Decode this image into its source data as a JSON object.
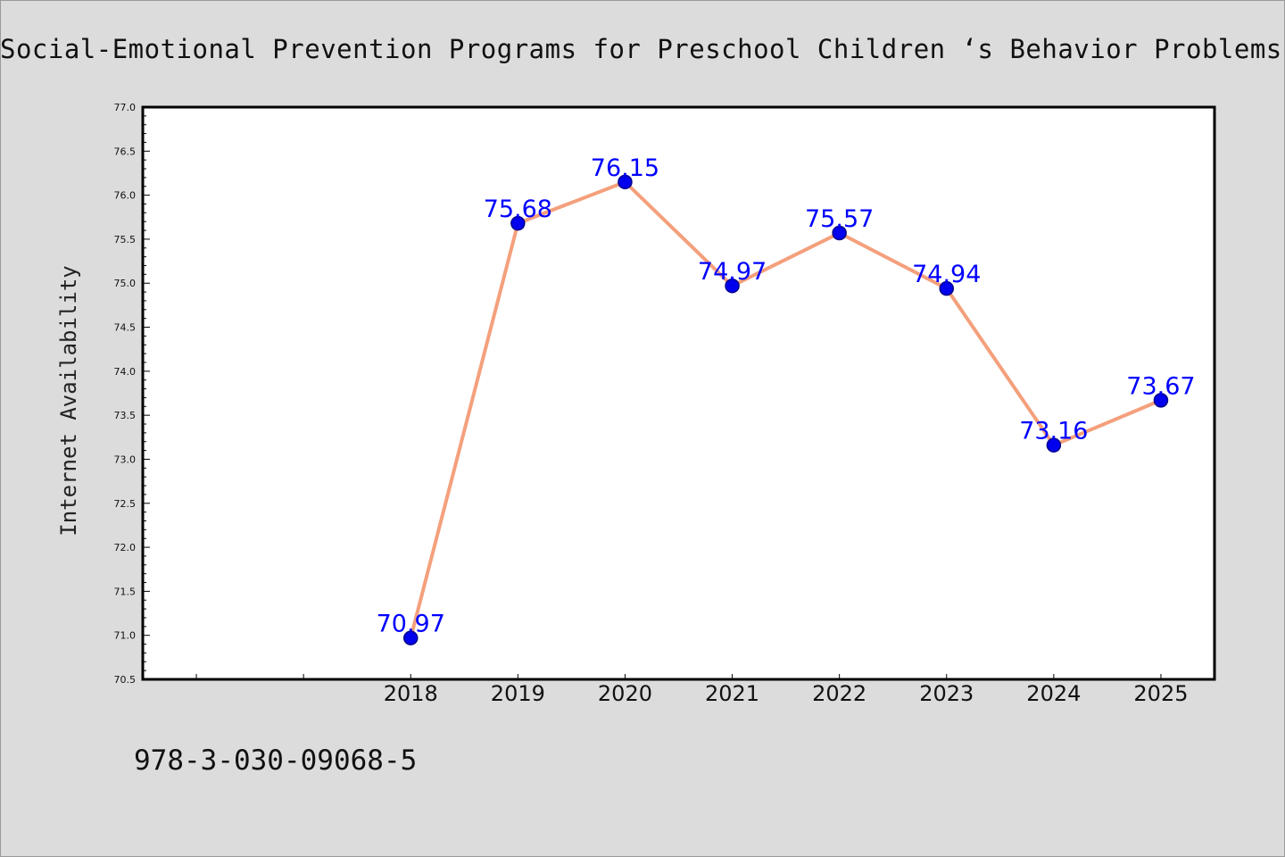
{
  "chart_data": {
    "type": "line",
    "title": "Social-Emotional Prevention Programs for Preschool Children ‘s Behavior Problems",
    "ylabel": "Internet Availability",
    "xlabel": "",
    "x": [
      "2018",
      "2019",
      "2020",
      "2021",
      "2022",
      "2023",
      "2024",
      "2025"
    ],
    "x_slots_total": 10,
    "values": [
      70.97,
      75.68,
      76.15,
      74.97,
      75.57,
      74.94,
      73.16,
      73.67
    ],
    "data_labels": [
      "70.97",
      "75.68",
      "76.15",
      "74.97",
      "75.57",
      "74.94",
      "73.16",
      "73.67"
    ],
    "ylim": [
      70.5,
      77.0
    ],
    "yticks": [
      "70.5",
      "71.0",
      "71.5",
      "72.0",
      "72.5",
      "73.0",
      "73.5",
      "74.0",
      "74.5",
      "75.0",
      "75.5",
      "76.0",
      "76.5",
      "77.0"
    ],
    "grid": false,
    "legend": "none",
    "colors": {
      "line": "#f4a07c",
      "marker_fill": "#0000ee",
      "marker_edge": "#00008b",
      "data_label": "#0000ff",
      "plot_bg": "#ffffff",
      "figure_bg": "#dcdcdc"
    }
  },
  "footer": {
    "text": "978-3-030-09068-5"
  }
}
